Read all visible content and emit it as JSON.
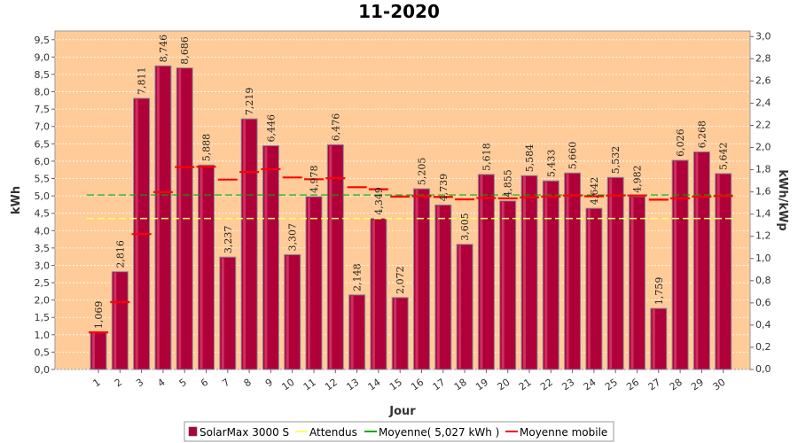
{
  "chart_data": {
    "type": "bar",
    "title": "11-2020",
    "xlabel": "Jour",
    "ylabel": "kWh",
    "y2label": "kWh/kWp",
    "ylim": [
      0,
      9.75
    ],
    "y2lim": [
      0,
      3.05
    ],
    "yticks": [
      "0,0",
      "0,5",
      "1,0",
      "1,5",
      "2,0",
      "2,5",
      "3,0",
      "3,5",
      "4,0",
      "4,5",
      "5,0",
      "5,5",
      "6,0",
      "6,5",
      "7,0",
      "7,5",
      "8,0",
      "8,5",
      "9,0",
      "9,5"
    ],
    "y2ticks": [
      "0,0",
      "0,2",
      "0,4",
      "0,6",
      "0,8",
      "1,0",
      "1,2",
      "1,4",
      "1,6",
      "1,8",
      "2,0",
      "2,2",
      "2,4",
      "2,6",
      "2,8",
      "3,0"
    ],
    "categories": [
      "1",
      "2",
      "3",
      "4",
      "5",
      "6",
      "7",
      "8",
      "9",
      "10",
      "11",
      "12",
      "13",
      "14",
      "15",
      "16",
      "17",
      "18",
      "19",
      "20",
      "21",
      "22",
      "23",
      "24",
      "25",
      "26",
      "27",
      "28",
      "29",
      "30"
    ],
    "series": [
      {
        "name": "SolarMax 3000 S",
        "color": "#b0003a",
        "values": [
          1.069,
          2.816,
          7.811,
          8.746,
          8.686,
          5.888,
          3.237,
          7.219,
          6.446,
          3.307,
          4.978,
          6.476,
          2.148,
          4.349,
          2.072,
          5.205,
          4.739,
          3.605,
          5.618,
          4.855,
          5.584,
          5.433,
          5.66,
          4.642,
          5.532,
          4.982,
          1.759,
          6.026,
          6.268,
          5.642
        ],
        "labels": [
          "1,069",
          "2,816",
          "7,811",
          "8,746",
          "8,686",
          "5,888",
          "3,237",
          "7,219",
          "6,446",
          "3,307",
          "4,978",
          "6,476",
          "2,148",
          "4,349",
          "2,072",
          "5,205",
          "4,739",
          "3,605",
          "5,618",
          "4,855",
          "5,584",
          "5,433",
          "5,660",
          "4,642",
          "5,532",
          "4,982",
          "1,759",
          "6,026",
          "6,268",
          "5,642"
        ]
      },
      {
        "name": "Attendus",
        "color": "#ffff66",
        "value": 4.35
      },
      {
        "name": "Moyenne( 5,027 kWh )",
        "color": "#00aa00",
        "value": 5.027
      },
      {
        "name": "Moyenne mobile",
        "color": "#ff0000",
        "values": [
          1.069,
          1.94,
          3.9,
          5.11,
          5.83,
          5.84,
          5.47,
          5.69,
          5.77,
          5.53,
          5.48,
          5.51,
          5.25,
          5.19,
          4.98,
          4.99,
          4.97,
          4.9,
          4.94,
          4.93,
          4.96,
          4.98,
          5.01,
          4.99,
          5.01,
          5.01,
          4.89,
          4.93,
          4.98,
          5.0
        ]
      }
    ],
    "grid": true,
    "legend_position": "bottom"
  },
  "legend": {
    "items": [
      {
        "label": "SolarMax 3000 S"
      },
      {
        "label": "Attendus"
      },
      {
        "label": "Moyenne( 5,027 kWh )"
      },
      {
        "label": "Moyenne mobile"
      }
    ]
  },
  "colors": {
    "plot_background": "#ffcc99",
    "grid": "#ffffff",
    "bar": "#b0003a",
    "bar_highlight": "#e8557f",
    "expected": "#ffff66",
    "average": "#00aa00",
    "moving_average": "#ff0000"
  }
}
